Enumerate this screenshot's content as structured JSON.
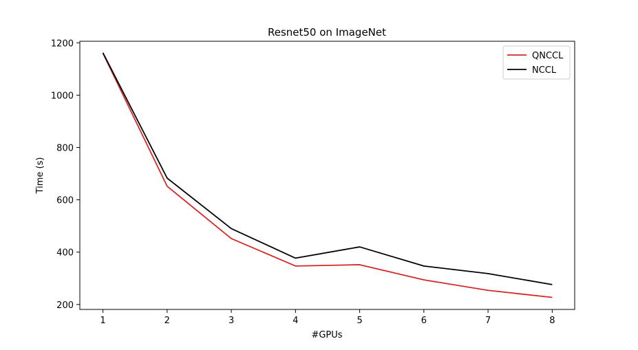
{
  "chart_data": {
    "type": "line",
    "title": "Resnet50 on ImageNet",
    "xlabel": "#GPUs",
    "ylabel": "Time (s)",
    "x": [
      1,
      2,
      3,
      4,
      5,
      6,
      7,
      8
    ],
    "xticks": [
      "1",
      "2",
      "3",
      "4",
      "5",
      "6",
      "7",
      "8"
    ],
    "yticks": [
      "200",
      "400",
      "600",
      "800",
      "1000",
      "1200"
    ],
    "ytick_values": [
      200,
      400,
      600,
      800,
      1000,
      1200
    ],
    "xlim": [
      0.64,
      8.35
    ],
    "ylim": [
      181,
      1206
    ],
    "grid": false,
    "legend_position": "top-right",
    "series": [
      {
        "name": "QNCCL",
        "color": "#d62728",
        "values": [
          1160,
          652,
          452,
          347,
          352,
          294,
          254,
          227
        ]
      },
      {
        "name": "NCCL",
        "color": "#000000",
        "values": [
          1162,
          683,
          490,
          377,
          420,
          347,
          318,
          276
        ]
      }
    ]
  }
}
